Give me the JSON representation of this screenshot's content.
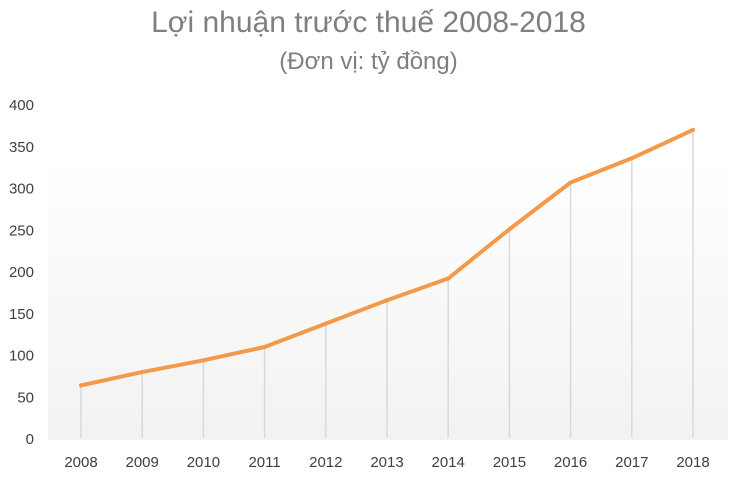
{
  "chart_data": {
    "type": "line",
    "title": "Lợi nhuận trước thuế 2008-2018",
    "subtitle": "(Đơn vị: tỷ đồng)",
    "categories": [
      "2008",
      "2009",
      "2010",
      "2011",
      "2012",
      "2013",
      "2014",
      "2015",
      "2016",
      "2017",
      "2018"
    ],
    "series": [
      {
        "values": [
          63,
          79,
          93,
          109,
          137,
          165,
          191,
          250,
          306,
          335,
          369
        ]
      }
    ],
    "ylim": [
      0,
      400
    ],
    "yticks": [
      0,
      50,
      100,
      150,
      200,
      250,
      300,
      350,
      400
    ],
    "ytick_labels": [
      "0",
      "50",
      "100",
      "150",
      "200",
      "250",
      "300",
      "350",
      "400"
    ],
    "grid": "vertical drop lines",
    "line_color": "#f39a4a",
    "dropline_color": "#d9d9d9",
    "axis_text_color": "#404040"
  }
}
